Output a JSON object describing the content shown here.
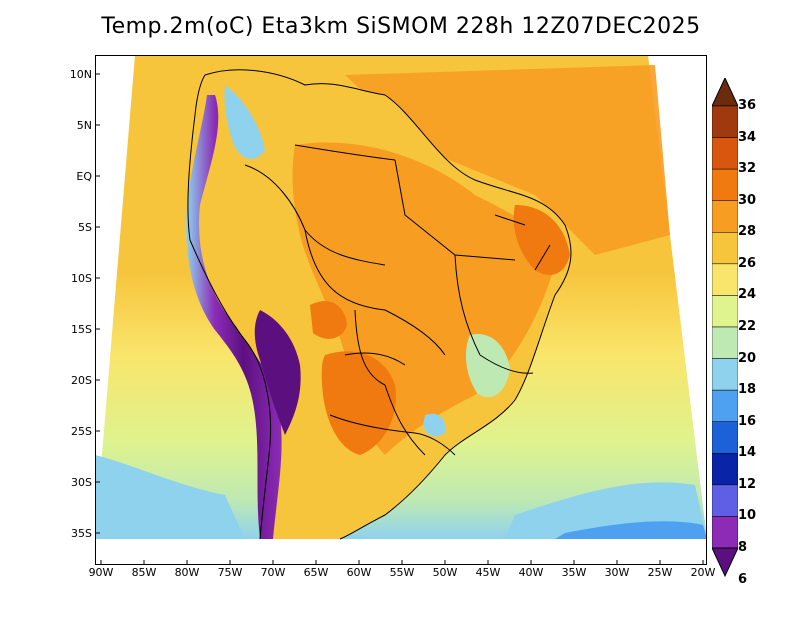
{
  "title": "Temp.2m(oC) Eta3km SiSMOM 228h 12Z07DEC2025",
  "lat_labels": [
    "10N",
    "5N",
    "EQ",
    "5S",
    "10S",
    "15S",
    "20S",
    "25S",
    "30S",
    "35S"
  ],
  "lon_labels": [
    "90W",
    "85W",
    "80W",
    "75W",
    "70W",
    "65W",
    "60W",
    "55W",
    "50W",
    "45W",
    "40W",
    "35W",
    "30W",
    "25W",
    "20W"
  ],
  "colorbar": {
    "labels": [
      "36",
      "34",
      "32",
      "30",
      "28",
      "26",
      "24",
      "22",
      "20",
      "18",
      "16",
      "14",
      "12",
      "10",
      "8",
      "6"
    ],
    "colors": [
      "#6b2c0e",
      "#a0390e",
      "#d9560f",
      "#f07a10",
      "#f79d22",
      "#f7c53c",
      "#f9e56b",
      "#dff38e",
      "#bfe9b3",
      "#8fd2ee",
      "#4da1f0",
      "#1c61d8",
      "#0a24a8",
      "#5f5fe6",
      "#8c2cb6",
      "#5c1080"
    ]
  },
  "map": {
    "field": "2 m temperature (°C)",
    "palette_scale": {
      "ocean_north": "#f7c53c",
      "ocean_equatorial_atlantic": "#f79d22",
      "ocean_south": "#dff38e",
      "ocean_far_south": "#8fd2ee",
      "land_base": "#f7c53c",
      "land_warm": "#f79d22",
      "land_hot": "#f07a10",
      "andes_cold": "#5c1080",
      "andes_mid": "#8c2cb6",
      "highlands": "#bfe9b3"
    }
  }
}
